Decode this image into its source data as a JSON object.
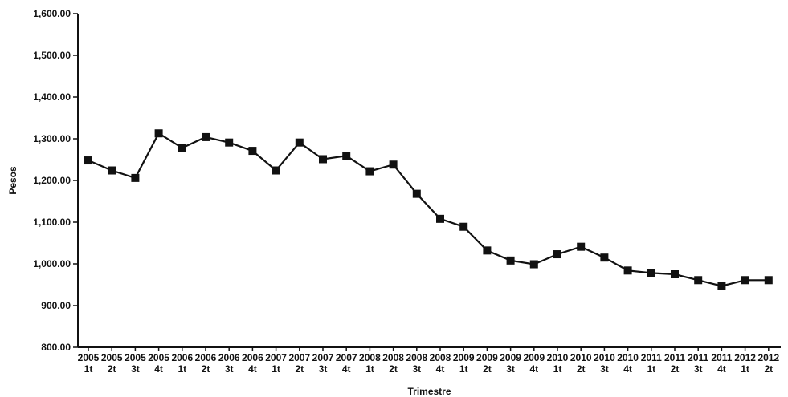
{
  "chart_data": {
    "type": "line",
    "xlabel": "Trimestre",
    "ylabel": "Pesos",
    "ylim": [
      800,
      1600
    ],
    "yticks": [
      "800.00",
      "900.00",
      "1,000.00",
      "1,100.00",
      "1,200.00",
      "1,300.00",
      "1,400.00",
      "1,500.00",
      "1,600.00"
    ],
    "categories": [
      [
        "2005",
        "1t"
      ],
      [
        "2005",
        "2t"
      ],
      [
        "2005",
        "3t"
      ],
      [
        "2005",
        "4t"
      ],
      [
        "2006",
        "1t"
      ],
      [
        "2006",
        "2t"
      ],
      [
        "2006",
        "3t"
      ],
      [
        "2006",
        "4t"
      ],
      [
        "2007",
        "1t"
      ],
      [
        "2007",
        "2t"
      ],
      [
        "2007",
        "3t"
      ],
      [
        "2007",
        "4t"
      ],
      [
        "2008",
        "1t"
      ],
      [
        "2008",
        "2t"
      ],
      [
        "2008",
        "3t"
      ],
      [
        "2008",
        "4t"
      ],
      [
        "2009",
        "1t"
      ],
      [
        "2009",
        "2t"
      ],
      [
        "2009",
        "3t"
      ],
      [
        "2009",
        "4t"
      ],
      [
        "2010",
        "1t"
      ],
      [
        "2010",
        "2t"
      ],
      [
        "2010",
        "3t"
      ],
      [
        "2010",
        "4t"
      ],
      [
        "2011",
        "1t"
      ],
      [
        "2011",
        "2t"
      ],
      [
        "2011",
        "3t"
      ],
      [
        "2011",
        "4t"
      ],
      [
        "2012",
        "1t"
      ],
      [
        "2012",
        "2t"
      ]
    ],
    "series": [
      {
        "values": [
          1248,
          1224,
          1206,
          1313,
          1278,
          1304,
          1291,
          1271,
          1224,
          1291,
          1251,
          1259,
          1222,
          1238,
          1168,
          1108,
          1089,
          1032,
          1008,
          999,
          1023,
          1041,
          1015,
          984,
          978,
          975,
          961,
          947,
          961,
          961
        ]
      }
    ],
    "legend": "none",
    "grid": false,
    "colors": {
      "line": "#111111",
      "marker": "#111111"
    }
  }
}
